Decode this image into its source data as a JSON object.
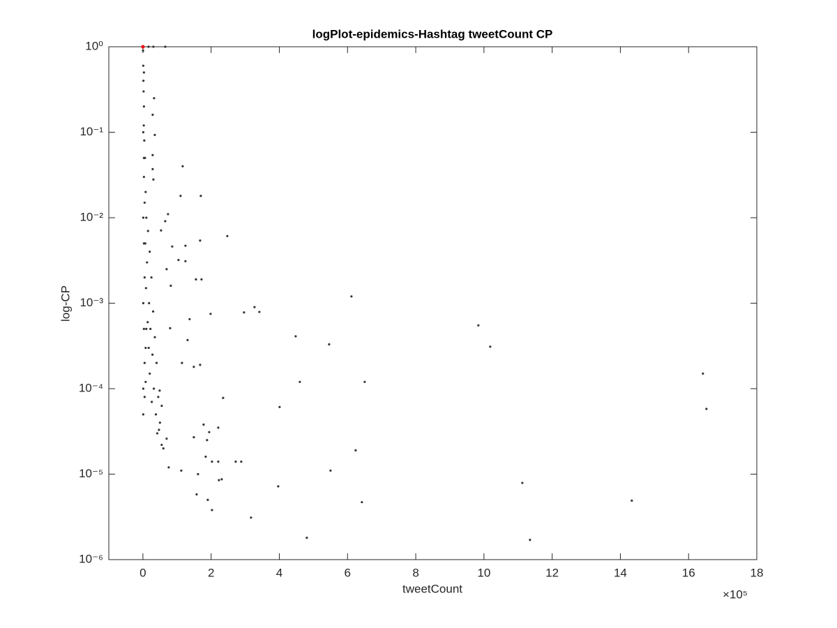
{
  "chart_data": {
    "type": "scatter",
    "title": "logPlot-epidemics-Hashtag tweetCount CP",
    "x_label": "tweetCount",
    "y_label": "log-CP",
    "x_multiplier": "×10⁵",
    "xlim": [
      -100000,
      1800000
    ],
    "ylim": [
      1e-06,
      1
    ],
    "y_scale": "log",
    "grid": false,
    "xticks": [
      {
        "value": 0,
        "label": "0"
      },
      {
        "value": 200000,
        "label": "2"
      },
      {
        "value": 400000,
        "label": "4"
      },
      {
        "value": 600000,
        "label": "6"
      },
      {
        "value": 800000,
        "label": "8"
      },
      {
        "value": 1000000,
        "label": "10"
      },
      {
        "value": 1200000,
        "label": "12"
      },
      {
        "value": 1400000,
        "label": "14"
      },
      {
        "value": 1600000,
        "label": "16"
      },
      {
        "value": 1800000,
        "label": "18"
      }
    ],
    "yticks": [
      {
        "value": 1e-06,
        "label": "10⁻⁶"
      },
      {
        "value": 1e-05,
        "label": "10⁻⁵"
      },
      {
        "value": 0.0001,
        "label": "10⁻⁴"
      },
      {
        "value": 0.001,
        "label": "10⁻³"
      },
      {
        "value": 0.01,
        "label": "10⁻²"
      },
      {
        "value": 0.1,
        "label": "10⁻¹"
      },
      {
        "value": 1,
        "label": "10⁰"
      }
    ],
    "series": [
      {
        "color": "#333333",
        "x": [
          32700,
          28600,
          34800,
          28600,
          28600,
          30700,
          116600,
          169700,
          110400,
          73600,
          65400,
          53200,
          124700,
          85900,
          167700,
          247400,
          171800,
          81800,
          69500,
          104300,
          124700,
          155400,
          79800,
          137000,
          198400,
          296500,
          327200,
          341500,
          611500,
          983600,
          1018400,
          447900,
          546000,
          460100,
          650300,
          130900,
          114500,
          167700,
          149300,
          235200,
          400800,
          1642100,
          1652300,
          623700,
          177900,
          194300,
          188100,
          220900,
          149300,
          184100,
          202500,
          220900,
          272000,
          288300,
          550100,
          112500,
          75700,
          161600,
          222900,
          231100,
          396700,
          1112500,
          642100,
          1433500,
          190200,
          157500,
          202500,
          317000,
          480600,
          1135000,
          47000,
          55200,
          49100,
          69500,
          16400,
          30700,
          65400,
          500,
          1000,
          1500,
          2000,
          3000,
          2500,
          4000,
          6000,
          3000,
          8000,
          5000,
          10000,
          15000,
          7000,
          20000,
          12000,
          25000,
          9000,
          18000,
          30000,
          14000,
          22000,
          35000,
          17000,
          28000,
          40000,
          20000,
          32000,
          45000,
          26000,
          38000,
          50000,
          42000,
          55000,
          60000,
          1000,
          1000,
          1000,
          1000,
          1000,
          3000,
          3000,
          3000,
          3000,
          5000,
          5000,
          5000,
          8000,
          8000,
          10000
        ],
        "values": [
          0.25,
          0.16,
          0.093,
          0.054,
          0.037,
          0.028,
          0.04,
          0.018,
          0.018,
          0.011,
          0.0091,
          0.0071,
          0.0047,
          0.0046,
          0.0054,
          0.0061,
          0.0019,
          0.0016,
          0.0025,
          0.0032,
          0.0031,
          0.0019,
          0.00051,
          0.00065,
          0.00075,
          0.00078,
          0.0009,
          0.00079,
          0.0012,
          0.00055,
          0.00031,
          0.00041,
          0.00033,
          0.00012,
          0.00012,
          0.00037,
          0.0002,
          0.00019,
          0.00018,
          7.8e-05,
          6.1e-05,
          0.00015,
          5.8e-05,
          1.9e-05,
          3.8e-05,
          3.1e-05,
          2.5e-05,
          3.5e-05,
          2.7e-05,
          1.6e-05,
          1.4e-05,
          1.4e-05,
          1.4e-05,
          1.4e-05,
          1.1e-05,
          1.1e-05,
          1.2e-05,
          1e-05,
          8.5e-06,
          8.7e-06,
          7.2e-06,
          7.9e-06,
          4.7e-06,
          4.9e-06,
          5e-06,
          5.8e-06,
          3.8e-06,
          3.1e-06,
          1.8e-06,
          1.7e-06,
          3.3e-05,
          6.3e-05,
          9.5e-05,
          2.6e-05,
          1,
          1,
          1,
          0.9,
          0.6,
          0.4,
          0.3,
          0.2,
          0.12,
          0.08,
          0.05,
          0.03,
          0.02,
          0.015,
          0.01,
          0.007,
          0.005,
          0.004,
          0.003,
          0.002,
          0.0015,
          0.001,
          0.0008,
          0.0006,
          0.0005,
          0.0004,
          0.0003,
          0.00025,
          0.0002,
          0.00015,
          0.0001,
          8e-05,
          7e-05,
          5e-05,
          4e-05,
          3e-05,
          2.2e-05,
          2e-05,
          0.1,
          0.01,
          0.001,
          0.0001,
          5e-05,
          0.5,
          0.05,
          0.005,
          0.0005,
          0.002,
          0.0002,
          8e-05,
          0.0003,
          0.00012,
          0.0005
        ]
      },
      {
        "color": "#e8141a",
        "x": [
          100
        ],
        "values": [
          1
        ]
      }
    ]
  }
}
